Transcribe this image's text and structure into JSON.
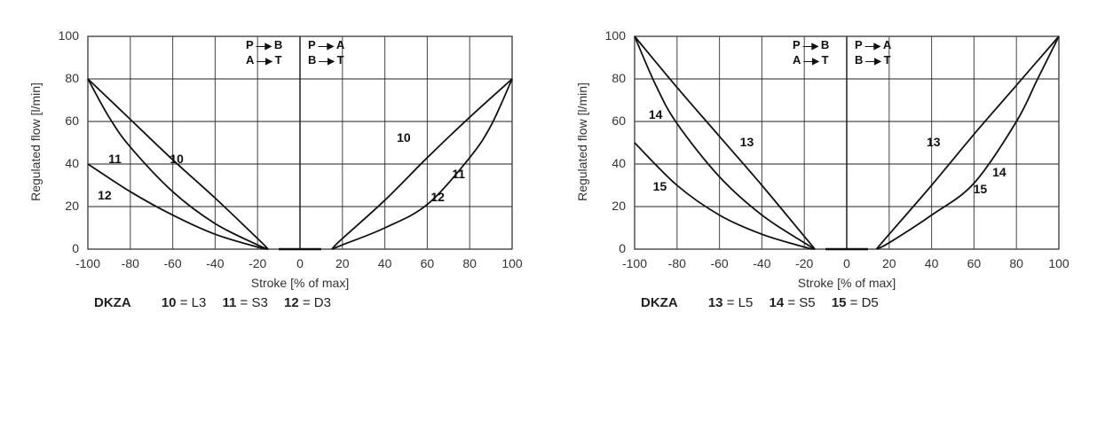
{
  "chart_data": [
    {
      "type": "line",
      "title": "",
      "xlabel": "Stroke [% of max]",
      "ylabel": "Regulated flow [l/min]",
      "xlim": [
        -100,
        100
      ],
      "ylim": [
        0,
        100
      ],
      "xticks": [
        "-100",
        "-80",
        "-60",
        "-40",
        "-20",
        "0",
        "20",
        "40",
        "60",
        "80",
        "100"
      ],
      "yticks": [
        "100",
        "80",
        "60",
        "40",
        "20",
        "0"
      ],
      "grid": true,
      "annotations": {
        "left_top": "P → B",
        "left_bottom": "A → T",
        "right_top": "P → A",
        "right_bottom": "B → T"
      },
      "legend": {
        "model": "DKZA",
        "entries": [
          {
            "num": "10",
            "code": "L3"
          },
          {
            "num": "11",
            "code": "S3"
          },
          {
            "num": "12",
            "code": "D3"
          }
        ]
      },
      "series": [
        {
          "name": "10 (L3) negative",
          "x": [
            -100,
            -80,
            -60,
            -40,
            -20,
            -15
          ],
          "y": [
            80,
            61,
            42,
            24,
            5,
            0
          ]
        },
        {
          "name": "11 (S3) negative",
          "x": [
            -100,
            -90,
            -80,
            -60,
            -40,
            -20,
            -15
          ],
          "y": [
            80,
            62,
            48,
            27,
            12,
            2,
            0
          ]
        },
        {
          "name": "12 (D3) negative",
          "x": [
            -100,
            -80,
            -60,
            -40,
            -20,
            -15
          ],
          "y": [
            40,
            27,
            16,
            7,
            1,
            0
          ]
        },
        {
          "name": "10 (L3) positive",
          "x": [
            15,
            20,
            40,
            60,
            80,
            100
          ],
          "y": [
            0,
            5,
            23,
            43,
            62,
            80
          ]
        },
        {
          "name": "11/12 (S3/D3) positive",
          "x": [
            15,
            20,
            40,
            60,
            80,
            90,
            100
          ],
          "y": [
            0,
            2,
            10,
            21,
            43,
            58,
            80
          ]
        }
      ],
      "curve_labels": [
        {
          "text": "11",
          "x": -87,
          "y": 42
        },
        {
          "text": "10",
          "x": -58,
          "y": 42
        },
        {
          "text": "12",
          "x": -92,
          "y": 25
        },
        {
          "text": "10",
          "x": 49,
          "y": 52
        },
        {
          "text": "11",
          "x": 75,
          "y": 35
        },
        {
          "text": "12",
          "x": 65,
          "y": 24
        }
      ]
    },
    {
      "type": "line",
      "title": "",
      "xlabel": "Stroke [% of max]",
      "ylabel": "Regulated flow [l/min]",
      "xlim": [
        -100,
        100
      ],
      "ylim": [
        0,
        100
      ],
      "xticks": [
        "-100",
        "-80",
        "-60",
        "-40",
        "-20",
        "0",
        "20",
        "40",
        "60",
        "80",
        "100"
      ],
      "yticks": [
        "100",
        "80",
        "60",
        "40",
        "20",
        "0"
      ],
      "grid": true,
      "annotations": {
        "left_top": "P → B",
        "left_bottom": "A → T",
        "right_top": "P → A",
        "right_bottom": "B → T"
      },
      "legend": {
        "model": "DKZA",
        "entries": [
          {
            "num": "13",
            "code": "L5"
          },
          {
            "num": "14",
            "code": "S5"
          },
          {
            "num": "15",
            "code": "D5"
          }
        ]
      },
      "series": [
        {
          "name": "13 (L5) negative",
          "x": [
            -100,
            -80,
            -60,
            -40,
            -20,
            -15
          ],
          "y": [
            100,
            76,
            53,
            30,
            6,
            0
          ]
        },
        {
          "name": "14 (S5) negative",
          "x": [
            -100,
            -90,
            -80,
            -60,
            -40,
            -20,
            -15
          ],
          "y": [
            100,
            77,
            59,
            34,
            16,
            3,
            0
          ]
        },
        {
          "name": "15 (D5) negative",
          "x": [
            -100,
            -80,
            -60,
            -40,
            -20,
            -15
          ],
          "y": [
            50,
            30,
            16,
            7,
            1,
            0
          ]
        },
        {
          "name": "13 (L5) positive",
          "x": [
            14,
            20,
            40,
            60,
            80,
            100
          ],
          "y": [
            0,
            7,
            30,
            54,
            77,
            100
          ]
        },
        {
          "name": "14/15 (S5/D5) positive",
          "x": [
            14,
            20,
            40,
            60,
            80,
            90,
            100
          ],
          "y": [
            0,
            3,
            16,
            31,
            60,
            80,
            100
          ]
        }
      ],
      "curve_labels": [
        {
          "text": "14",
          "x": -90,
          "y": 63
        },
        {
          "text": "13",
          "x": -47,
          "y": 50
        },
        {
          "text": "15",
          "x": -88,
          "y": 29
        },
        {
          "text": "13",
          "x": 41,
          "y": 50
        },
        {
          "text": "14",
          "x": 72,
          "y": 36
        },
        {
          "text": "15",
          "x": 63,
          "y": 28
        }
      ]
    }
  ],
  "charts": [
    {
      "ylabel": "Regulated flow [l/min]",
      "xlabel": "Stroke [% of max]",
      "legend_model": "DKZA",
      "legend": [
        {
          "num": "10",
          "code": "= L3"
        },
        {
          "num": "11",
          "code": "= S3"
        },
        {
          "num": "12",
          "code": "= D3"
        }
      ],
      "flow_left": [
        "P",
        "B",
        "A",
        "T"
      ],
      "flow_right": [
        "P",
        "A",
        "B",
        "T"
      ]
    },
    {
      "ylabel": "Regulated flow [l/min]",
      "xlabel": "Stroke [% of max]",
      "legend_model": "DKZA",
      "legend": [
        {
          "num": "13",
          "code": "= L5"
        },
        {
          "num": "14",
          "code": "= S5"
        },
        {
          "num": "15",
          "code": "= D5"
        }
      ],
      "flow_left": [
        "P",
        "B",
        "A",
        "T"
      ],
      "flow_right": [
        "P",
        "A",
        "B",
        "T"
      ]
    }
  ],
  "colors": {
    "grid": "#555555",
    "frame": "#444444",
    "curve": "#111111",
    "text": "#333333"
  }
}
